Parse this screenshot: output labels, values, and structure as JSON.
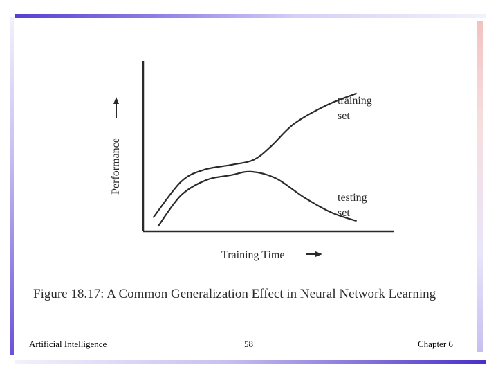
{
  "chart_data": {
    "type": "line",
    "title": "",
    "xlabel": "Training Time",
    "ylabel": "Performance",
    "xlim": [
      0,
      10
    ],
    "ylim": [
      0,
      10
    ],
    "grid": false,
    "series": [
      {
        "name": "training set",
        "label_lines": [
          "training",
          "set"
        ],
        "x": [
          0.4,
          1.5,
          2.4,
          3.5,
          4.4,
          5.1,
          6.0,
          7.3,
          8.5
        ],
        "y": [
          0.8,
          2.9,
          3.6,
          3.9,
          4.2,
          5.0,
          6.3,
          7.4,
          8.1
        ]
      },
      {
        "name": "testing set",
        "label_lines": [
          "testing",
          "set"
        ],
        "x": [
          0.6,
          1.5,
          2.5,
          3.5,
          4.3,
          5.3,
          6.4,
          7.5,
          8.5
        ],
        "y": [
          0.3,
          2.1,
          3.0,
          3.3,
          3.5,
          3.1,
          2.0,
          1.1,
          0.6
        ]
      }
    ]
  },
  "caption": "Figure 18.17: A Common Generalization Effect in Neural Network Learning",
  "footer": {
    "left": "Artificial Intelligence",
    "center": "58",
    "right": "Chapter 6"
  },
  "colors": {
    "accent_purple": "#5a3fcf",
    "accent_pink": "#f2c2c2",
    "ink": "#2a2a2a"
  }
}
